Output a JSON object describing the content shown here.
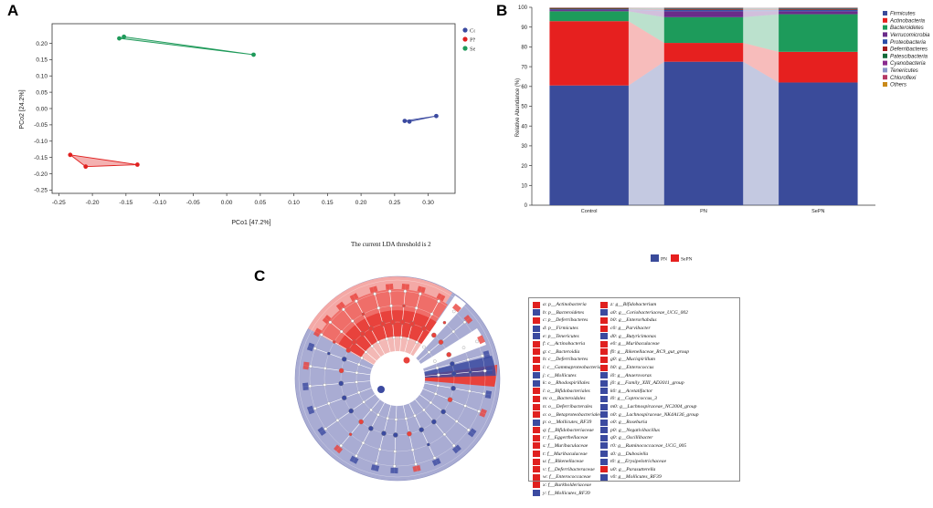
{
  "panels": {
    "a": "A",
    "b": "B",
    "c": "C"
  },
  "threshold_text": "The current LDA threshold is 2",
  "colors": {
    "control": "#3b4aa0",
    "pn": "#e0201f",
    "sepn": "#1f9a5a",
    "clado_bg": "#a9acd3",
    "clado_red": "#e8423c"
  },
  "chart_data": [
    {
      "type": "scatter",
      "title": "",
      "xlabel": "PCo1 [47.2%]",
      "ylabel": "PCo2 [24.2%]",
      "xlim": [
        -0.26,
        0.34
      ],
      "ylim": [
        -0.26,
        0.26
      ],
      "xticks": [
        -0.25,
        -0.2,
        -0.15,
        -0.1,
        -0.05,
        0.0,
        0.05,
        0.1,
        0.15,
        0.2,
        0.25,
        0.3
      ],
      "xtick_labels": [
        "-0.25",
        "-0.20",
        "-0.15",
        "-0.10",
        "-0.05",
        "0.00",
        "0.05",
        "0.10",
        "0.15",
        "0.20",
        "0.25",
        "0.30"
      ],
      "yticks": [
        0.2,
        0.15,
        0.1,
        0.05,
        0.0,
        -0.05,
        -0.1,
        -0.15,
        -0.2,
        -0.25
      ],
      "ytick_labels": [
        "0.20",
        "0.15",
        "0.10",
        "0.05",
        "0.00",
        "-0.05",
        "-0.10",
        "-0.15",
        "-0.20",
        "-0.25"
      ],
      "legend": [
        "Control",
        "PN",
        "SePN"
      ],
      "legend_position": "top-right",
      "series": [
        {
          "name": "Control",
          "color": "#3b4aa0",
          "points": [
            [
              0.265,
              -0.038
            ],
            [
              0.272,
              -0.04
            ],
            [
              0.312,
              -0.023
            ]
          ]
        },
        {
          "name": "PN",
          "color": "#e0201f",
          "points": [
            [
              -0.233,
              -0.142
            ],
            [
              -0.21,
              -0.178
            ],
            [
              -0.133,
              -0.172
            ]
          ]
        },
        {
          "name": "SePN",
          "color": "#1f9a5a",
          "points": [
            [
              -0.16,
              0.215
            ],
            [
              -0.153,
              0.22
            ],
            [
              0.04,
              0.165
            ]
          ]
        }
      ]
    },
    {
      "type": "bar",
      "stacked": true,
      "title": "",
      "xlabel": "",
      "ylabel": "Relative Abundance (%)",
      "ylim": [
        0,
        100
      ],
      "yticks": [
        0,
        10,
        20,
        30,
        40,
        50,
        60,
        70,
        80,
        90,
        100
      ],
      "categories": [
        "Control",
        "PN",
        "SePN"
      ],
      "series": [
        {
          "name": "Firmicutes",
          "color": "#3a4b9a",
          "values": [
            60.5,
            72.5,
            62.0
          ]
        },
        {
          "name": "Actinobacteria",
          "color": "#e6201f",
          "values": [
            32.5,
            9.5,
            15.5
          ]
        },
        {
          "name": "Bacteroidetes",
          "color": "#1d9b5b",
          "values": [
            5.0,
            13.0,
            19.0
          ]
        },
        {
          "name": "Verrucomicrobia",
          "color": "#6a2c8a",
          "values": [
            0.6,
            3.0,
            1.5
          ]
        },
        {
          "name": "Proteobacteria",
          "color": "#2b4ea8",
          "values": [
            0.4,
            0.6,
            0.6
          ]
        },
        {
          "name": "Deferribacteres",
          "color": "#a11a1c",
          "values": [
            0.3,
            0.4,
            0.4
          ]
        },
        {
          "name": "Patescibacteria",
          "color": "#156b3a",
          "values": [
            0.3,
            0.4,
            0.4
          ]
        },
        {
          "name": "Cyanobacteria",
          "color": "#8a2a8f",
          "values": [
            0.1,
            0.2,
            0.2
          ]
        },
        {
          "name": "Tenericutes",
          "color": "#8a94c8",
          "values": [
            0.1,
            0.2,
            0.2
          ]
        },
        {
          "name": "Chloroflexi",
          "color": "#b53a64",
          "values": [
            0.1,
            0.1,
            0.1
          ]
        },
        {
          "name": "Others",
          "color": "#c98a1a",
          "values": [
            0.1,
            0.1,
            0.1
          ]
        }
      ],
      "legend_position": "right",
      "bottom_legend": [
        {
          "name": "PN",
          "color": "#3a4b9a"
        },
        {
          "name": "SePN",
          "color": "#e6201f"
        }
      ]
    }
  ],
  "cladogram_legend": {
    "left": [
      {
        "label": "a: p__Actinobacteria",
        "color": "#e0201f"
      },
      {
        "label": "b: p__Bacteroidetes",
        "color": "#3b4aa0"
      },
      {
        "label": "c: p__Deferribacteres",
        "color": "#e0201f"
      },
      {
        "label": "d: p__Firmicutes",
        "color": "#3b4aa0"
      },
      {
        "label": "e: p__Tenericutes",
        "color": "#3b4aa0"
      },
      {
        "label": "f: c__Actinobacteria",
        "color": "#e0201f"
      },
      {
        "label": "g: c__Bacteroidia",
        "color": "#e0201f"
      },
      {
        "label": "h: c__Deferribacteres",
        "color": "#e0201f"
      },
      {
        "label": "i: c__Gammaproteobacteria",
        "color": "#e0201f"
      },
      {
        "label": "j: c__Mollicutes",
        "color": "#3b4aa0"
      },
      {
        "label": "k: o__Rhodospirillales",
        "color": "#3b4aa0"
      },
      {
        "label": "l: o__Bifidobacteriales",
        "color": "#e0201f"
      },
      {
        "label": "m: o__Bacteroidales",
        "color": "#e0201f"
      },
      {
        "label": "n: o__Deferribacterales",
        "color": "#e0201f"
      },
      {
        "label": "o: o__Betaproteobacteriales",
        "color": "#e0201f"
      },
      {
        "label": "p: o__Mollicutes_RF39",
        "color": "#3b4aa0"
      },
      {
        "label": "q: f__Bifidobacteriaceae",
        "color": "#e0201f"
      },
      {
        "label": "r: f__Eggerthellaceae",
        "color": "#e0201f"
      },
      {
        "label": "s: f__Muribaculaceae",
        "color": "#e0201f"
      },
      {
        "label": "t: f__Muribaculaceae",
        "color": "#e0201f"
      },
      {
        "label": "u: f__Rikenellaceae",
        "color": "#e0201f"
      },
      {
        "label": "v: f__Deferribacteraceae",
        "color": "#e0201f"
      },
      {
        "label": "w: f__Enterococcaceae",
        "color": "#e0201f"
      },
      {
        "label": "x: f__Burkholderiaceae",
        "color": "#e0201f"
      },
      {
        "label": "y: f__Mollicutes_RF39",
        "color": "#3b4aa0"
      }
    ],
    "right": [
      {
        "label": "z: g__Bifidobacterium",
        "color": "#e0201f"
      },
      {
        "label": "a0: g__Coriobacteriaceae_UCG_002",
        "color": "#3b4aa0"
      },
      {
        "label": "b0: g__Enterorhabdus",
        "color": "#e0201f"
      },
      {
        "label": "c0: g__Parvibacter",
        "color": "#e0201f"
      },
      {
        "label": "d0: g__Butyricimonas",
        "color": "#3b4aa0"
      },
      {
        "label": "e0: g__Muribaculaceae",
        "color": "#e0201f"
      },
      {
        "label": "f0: g__Rikenellaceae_RC9_gut_group",
        "color": "#e0201f"
      },
      {
        "label": "g0: g__Mucispirillum",
        "color": "#e0201f"
      },
      {
        "label": "h0: g__Enterococcus",
        "color": "#e0201f"
      },
      {
        "label": "i0: g__Anaerovorax",
        "color": "#3b4aa0"
      },
      {
        "label": "j0: g__Family_XIII_AD3011_group",
        "color": "#3b4aa0"
      },
      {
        "label": "k0: g__Acetatifactor",
        "color": "#3b4aa0"
      },
      {
        "label": "l0: g__Coprococcus_3",
        "color": "#3b4aa0"
      },
      {
        "label": "m0: g__Lachnospiraceae_NC2004_group",
        "color": "#3b4aa0"
      },
      {
        "label": "n0: g__Lachnospiraceae_NK4A136_group",
        "color": "#3b4aa0"
      },
      {
        "label": "o0: g__Roseburia",
        "color": "#3b4aa0"
      },
      {
        "label": "p0: g__Negativibacillus",
        "color": "#3b4aa0"
      },
      {
        "label": "q0: g__Oscillibacter",
        "color": "#3b4aa0"
      },
      {
        "label": "r0: g__Ruminococcaceae_UCG_005",
        "color": "#3b4aa0"
      },
      {
        "label": "s0: g__Dubosiella",
        "color": "#3b4aa0"
      },
      {
        "label": "t0: g__Erysipelotrichaceae",
        "color": "#3b4aa0"
      },
      {
        "label": "u0: g__Parasutterella",
        "color": "#e0201f"
      },
      {
        "label": "v0: g__Mollicutes_RF39",
        "color": "#3b4aa0"
      }
    ]
  }
}
